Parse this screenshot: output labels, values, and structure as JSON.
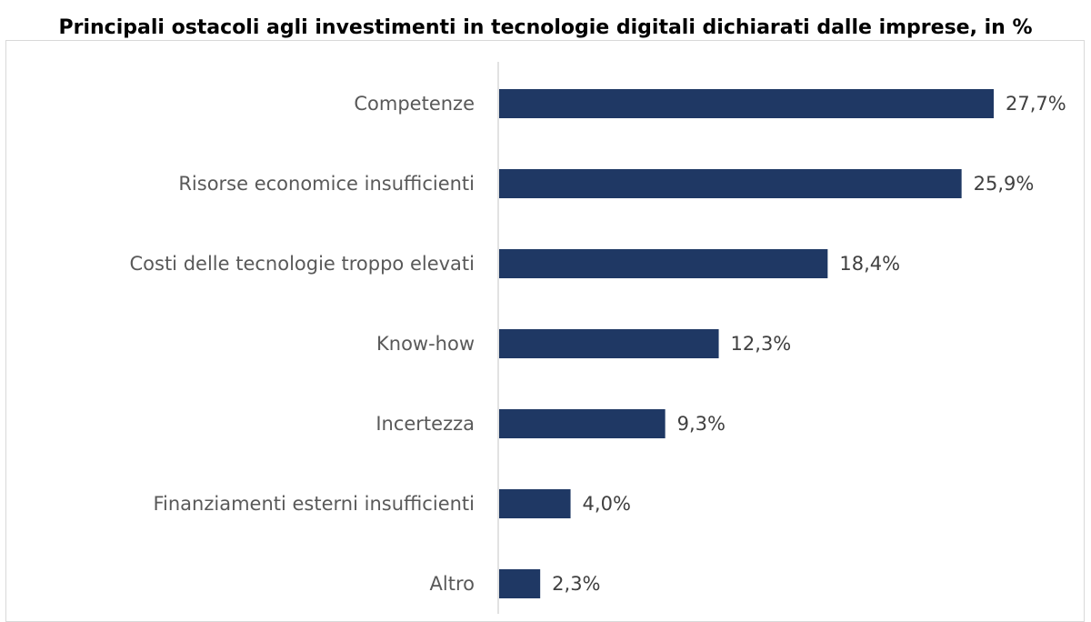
{
  "title": "Principali ostacoli agli investimenti in tecnologie digitali dichiarati dalle imprese, in %",
  "colors": {
    "bar": "#1f3864",
    "axis": "#d9d9d9"
  },
  "chart_data": {
    "type": "bar",
    "orientation": "horizontal",
    "title": "Principali ostacoli agli investimenti in tecnologie digitali dichiarati dalle imprese, in %",
    "categories": [
      "Competenze",
      "Risorse economice insufficienti",
      "Costi delle tecnologie troppo elevati",
      "Know-how",
      "Incertezza",
      "Finanziamenti esterni insufficienti",
      "Altro"
    ],
    "values": [
      27.7,
      25.9,
      18.4,
      12.3,
      9.3,
      4.0,
      2.3
    ],
    "value_labels": [
      "27,7%",
      "25,9%",
      "18,4%",
      "12,3%",
      "9,3%",
      "4,0%",
      "2,3%"
    ],
    "unit": "%",
    "xlim": [
      0,
      30
    ],
    "grid": false,
    "legend": "none"
  }
}
